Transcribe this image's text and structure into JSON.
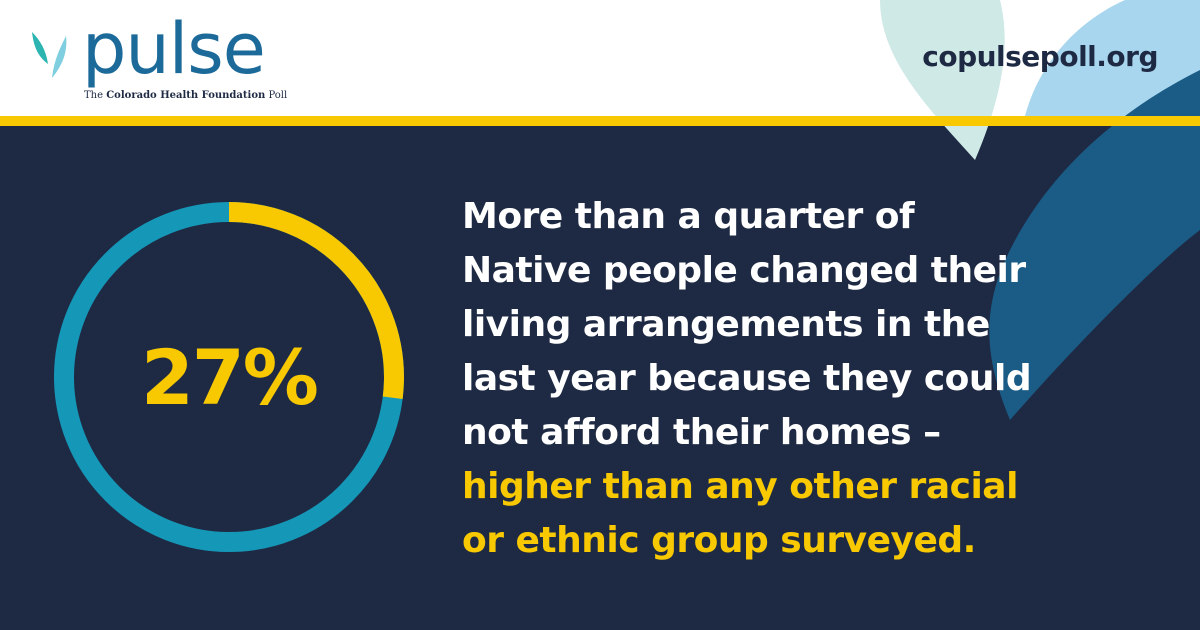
{
  "brand": {
    "logo_text": "pulse",
    "tagline_prefix": "The",
    "tagline_name": "Colorado Health Foundation",
    "tagline_suffix": "Poll",
    "website": "copulsepoll.org"
  },
  "colors": {
    "navy": "#1e2a44",
    "yellow": "#f8c800",
    "teal": "#1597b8",
    "brand_blue": "#1c6a99"
  },
  "stat": {
    "percent_label": "27%",
    "percent_value": 27
  },
  "statement": {
    "lines": [
      "More than a quarter of",
      "Native people changed their",
      "living arrangements in the",
      "last year because they could",
      "not afford their homes –"
    ],
    "highlight_lines": [
      "higher than any other racial",
      "or ethnic group surveyed."
    ]
  }
}
